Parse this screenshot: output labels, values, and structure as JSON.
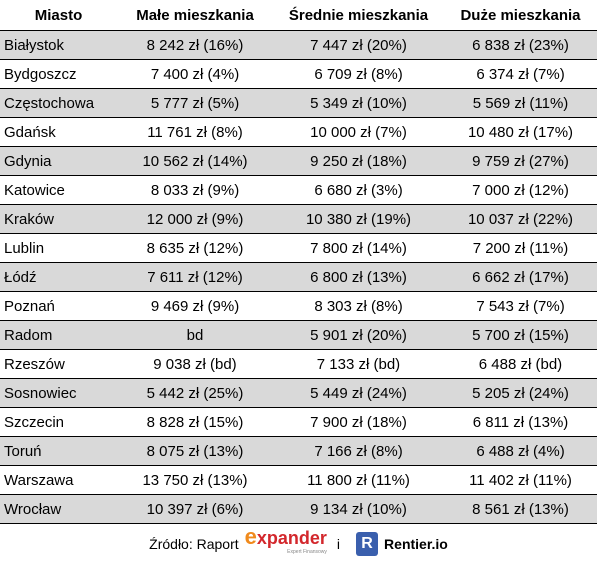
{
  "table": {
    "header": [
      "Miasto",
      "Małe mieszkania",
      "Średnie mieszkania",
      "Duże mieszkania"
    ],
    "rows": [
      [
        "Białystok",
        "8 242 zł (16%)",
        "7 447 zł (20%)",
        "6 838 zł (23%)"
      ],
      [
        "Bydgoszcz",
        "7 400 zł (4%)",
        "6 709 zł (8%)",
        "6 374 zł (7%)"
      ],
      [
        "Częstochowa",
        "5 777 zł (5%)",
        "5 349 zł (10%)",
        "5 569 zł (11%)"
      ],
      [
        "Gdańsk",
        "11 761 zł (8%)",
        "10 000 zł (7%)",
        "10 480 zł (17%)"
      ],
      [
        "Gdynia",
        "10 562 zł (14%)",
        "9 250 zł (18%)",
        "9 759 zł (27%)"
      ],
      [
        "Katowice",
        "8 033 zł (9%)",
        "6 680 zł (3%)",
        "7 000 zł (12%)"
      ],
      [
        "Kraków",
        "12 000 zł (9%)",
        "10 380 zł (19%)",
        "10 037 zł (22%)"
      ],
      [
        "Lublin",
        "8 635 zł (12%)",
        "7 800 zł (14%)",
        "7 200 zł (11%)"
      ],
      [
        "Łódź",
        "7 611 zł (12%)",
        "6 800 zł (13%)",
        "6 662 zł (17%)"
      ],
      [
        "Poznań",
        "9 469 zł (9%)",
        "8 303 zł (8%)",
        "7 543 zł (7%)"
      ],
      [
        "Radom",
        "bd",
        "5 901 zł (20%)",
        "5 700 zł (15%)"
      ],
      [
        "Rzeszów",
        "9 038 zł (bd)",
        "7 133 zł (bd)",
        "6 488 zł (bd)"
      ],
      [
        "Sosnowiec",
        "5 442 zł (25%)",
        "5 449 zł (24%)",
        "5 205 zł (24%)"
      ],
      [
        "Szczecin",
        "8 828 zł (15%)",
        "7 900 zł (18%)",
        "6 811 zł (13%)"
      ],
      [
        "Toruń",
        "8 075 zł (13%)",
        "7 166 zł (8%)",
        "6 488 zł (4%)"
      ],
      [
        "Warszawa",
        "13 750 zł (13%)",
        "11 800 zł (11%)",
        "11 402 zł (11%)"
      ],
      [
        "Wrocław",
        "10 397 zł (6%)",
        "9 134 zł (10%)",
        "8 561 zł (13%)"
      ]
    ]
  },
  "footer": {
    "source_label": "Źródło: Raport",
    "logo1": "expander",
    "logo1_sub": "Expert Finansowy",
    "connector": "i",
    "logo2_icon": "R",
    "logo2": "Rentier.io"
  }
}
